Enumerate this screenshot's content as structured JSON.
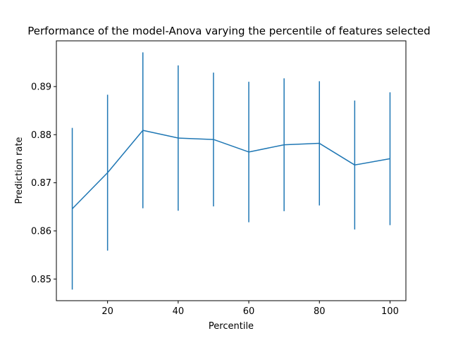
{
  "chart_data": {
    "type": "line",
    "title": "Performance of the model-Anova varying the percentile of features selected",
    "xlabel": "Percentile",
    "ylabel": "Prediction rate",
    "xlim": [
      5.5,
      104.5
    ],
    "ylim": [
      0.8455,
      0.8995
    ],
    "xticks": [
      20,
      40,
      60,
      80,
      100
    ],
    "yticks": [
      0.85,
      0.86,
      0.87,
      0.88,
      0.89
    ],
    "ytick_labels": [
      "0.85",
      "0.86",
      "0.87",
      "0.88",
      "0.89"
    ],
    "grid": false,
    "color": "#1f77b4",
    "series": [
      {
        "x": [
          10,
          20,
          30,
          40,
          50,
          60,
          70,
          80,
          90,
          100
        ],
        "y": [
          0.8646,
          0.8721,
          0.8809,
          0.8793,
          0.879,
          0.8764,
          0.8779,
          0.8782,
          0.8737,
          0.875
        ],
        "yerr": [
          0.0168,
          0.0162,
          0.0162,
          0.0151,
          0.0139,
          0.0146,
          0.0138,
          0.0129,
          0.0134,
          0.0138
        ]
      }
    ]
  }
}
